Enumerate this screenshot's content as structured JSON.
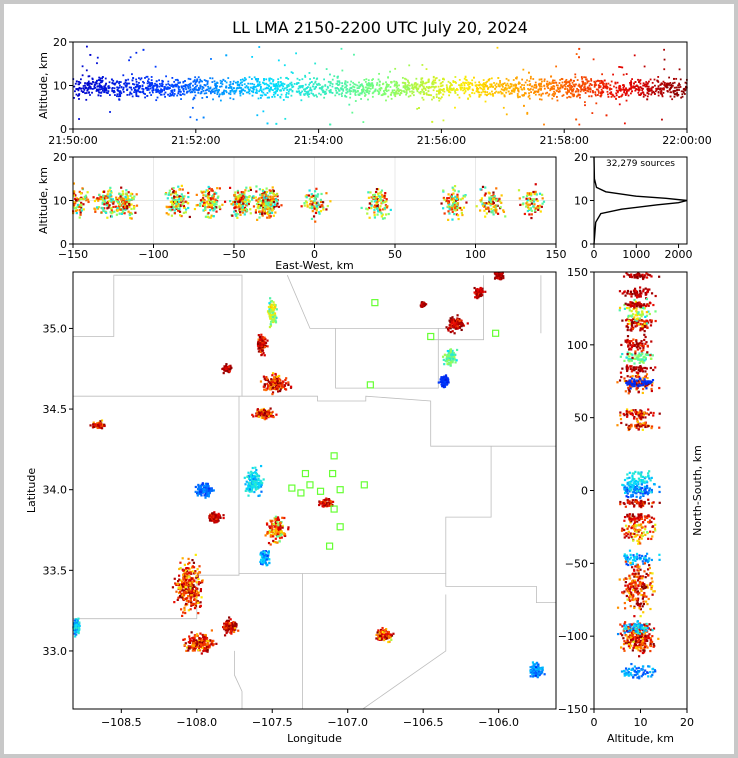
{
  "chart_data": [
    {
      "panel": "time-altitude",
      "type": "scatter",
      "title": "LL LMA 2150-2200 UTC July 20, 2024",
      "xlabel": "",
      "ylabel": "Altitude, km",
      "x_ticks": [
        "21:50:00",
        "21:52:00",
        "21:54:00",
        "21:56:00",
        "21:58:00",
        "22:00:00"
      ],
      "x_range": [
        "21:50:00",
        "22:00:00"
      ],
      "ylim": [
        0,
        20
      ],
      "y_ticks": [
        0,
        10,
        20
      ],
      "point_color": "by time (blue to red)",
      "altitude_center_km": 9.5,
      "altitude_spread_km": 1.6
    },
    {
      "panel": "east-west-altitude",
      "type": "scatter",
      "xlabel": "East-West, km",
      "ylabel": "Altitude, km",
      "xlim": [
        -150,
        150
      ],
      "x_ticks": [
        -150,
        -100,
        -50,
        0,
        50,
        100,
        150
      ],
      "ylim": [
        0,
        20
      ],
      "y_ticks": [
        0,
        10,
        20
      ],
      "clusters_km": [
        -147,
        -130,
        -118,
        -85,
        -65,
        -45,
        -30,
        -28,
        0,
        40,
        85,
        110,
        135
      ]
    },
    {
      "panel": "altitude-histogram",
      "type": "line",
      "annotation": "32,279 sources",
      "xlim": [
        0,
        2200
      ],
      "x_ticks": [
        0,
        1000,
        2000
      ],
      "ylim": [
        0,
        20
      ],
      "y_ticks": [
        0,
        10,
        20
      ],
      "profile": [
        [
          0,
          0
        ],
        [
          5,
          40
        ],
        [
          7,
          160
        ],
        [
          8,
          650
        ],
        [
          9,
          1500
        ],
        [
          9.5,
          2000
        ],
        [
          10,
          2200
        ],
        [
          10.5,
          1700
        ],
        [
          11,
          1000
        ],
        [
          12,
          280
        ],
        [
          13,
          60
        ],
        [
          15,
          10
        ],
        [
          20,
          0
        ]
      ]
    },
    {
      "panel": "plan-view",
      "type": "scatter",
      "xlabel": "Longitude",
      "ylabel": "Latitude",
      "xlim": [
        -108.82,
        -105.62
      ],
      "x_ticks": [
        -108.5,
        -108.0,
        -107.5,
        -107.0,
        -106.5,
        -106.0
      ],
      "ylim": [
        32.64,
        35.35
      ],
      "y_ticks": [
        33.0,
        33.5,
        34.0,
        34.5,
        35.0
      ],
      "stations": [
        [
          -106.82,
          35.16
        ],
        [
          -106.45,
          34.95
        ],
        [
          -106.02,
          34.97
        ],
        [
          -106.85,
          34.65
        ],
        [
          -107.09,
          34.21
        ],
        [
          -107.28,
          34.1
        ],
        [
          -107.1,
          34.1
        ],
        [
          -107.25,
          34.03
        ],
        [
          -107.37,
          34.01
        ],
        [
          -107.31,
          33.98
        ],
        [
          -107.18,
          33.99
        ],
        [
          -107.05,
          34.0
        ],
        [
          -106.89,
          34.03
        ],
        [
          -107.09,
          33.88
        ],
        [
          -107.05,
          33.77
        ],
        [
          -107.12,
          33.65
        ]
      ]
    },
    {
      "panel": "altitude-north-south",
      "type": "scatter",
      "xlabel": "Altitude, km",
      "ylabel": "North-South, km",
      "xlim": [
        0,
        20
      ],
      "x_ticks": [
        0,
        10,
        20
      ],
      "ylim": [
        -150,
        150
      ],
      "y_ticks": [
        -150,
        -100,
        -50,
        0,
        50,
        100,
        150
      ]
    }
  ]
}
